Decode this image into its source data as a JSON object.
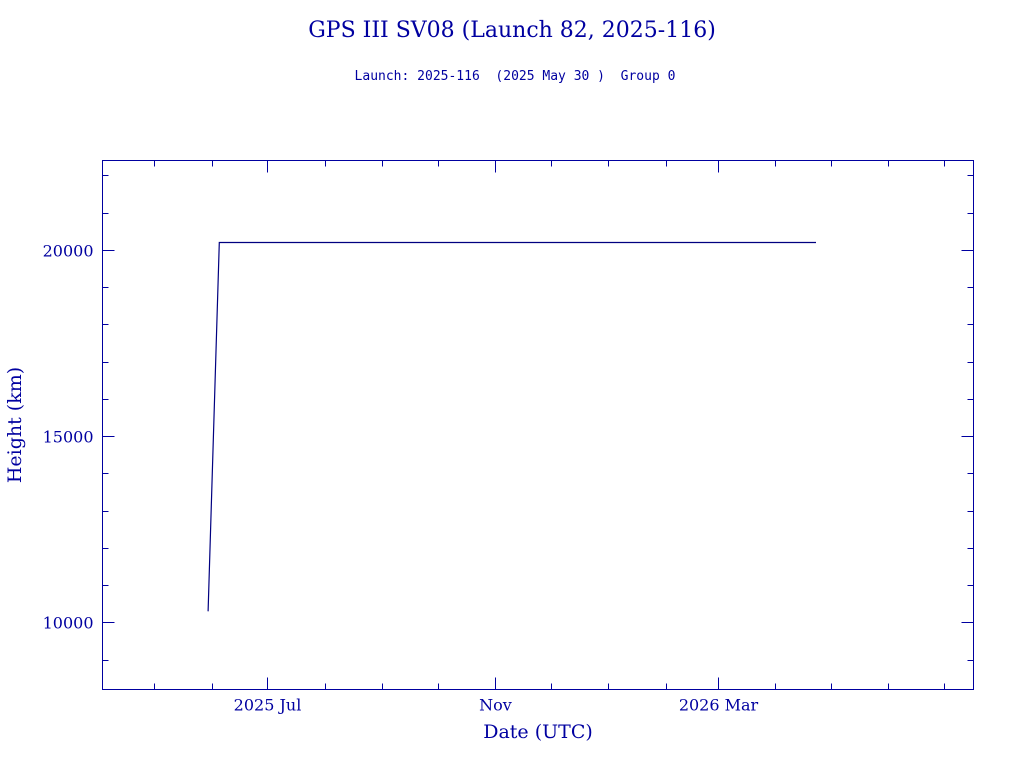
{
  "chart_data": {
    "type": "line",
    "title": "GPS III SV08 (Launch 82, 2025-116)",
    "subtitle": "Launch: 2025-116  (2025 May 30 )  Group 0",
    "xlabel": "Date (UTC)",
    "ylabel": "Height (km)",
    "x_scale": "date",
    "xlim": [
      "2025-04-03",
      "2026-07-17"
    ],
    "ylim": [
      8200,
      22400
    ],
    "x_ticks": [
      {
        "date": "2025-07-01",
        "label": "2025 Jul"
      },
      {
        "date": "2025-11-01",
        "label": "Nov"
      },
      {
        "date": "2026-03-01",
        "label": "2026 Mar"
      }
    ],
    "y_ticks": [
      10000,
      15000,
      20000
    ],
    "series": [
      {
        "x": [
          "2025-05-30",
          "2025-06-05",
          "2026-04-23"
        ],
        "y": [
          10300,
          20200,
          20200
        ],
        "color": "#000080"
      }
    ],
    "colors": {
      "axis": "#0000a0",
      "line": "#000080"
    },
    "grid": false,
    "legend": "none"
  }
}
